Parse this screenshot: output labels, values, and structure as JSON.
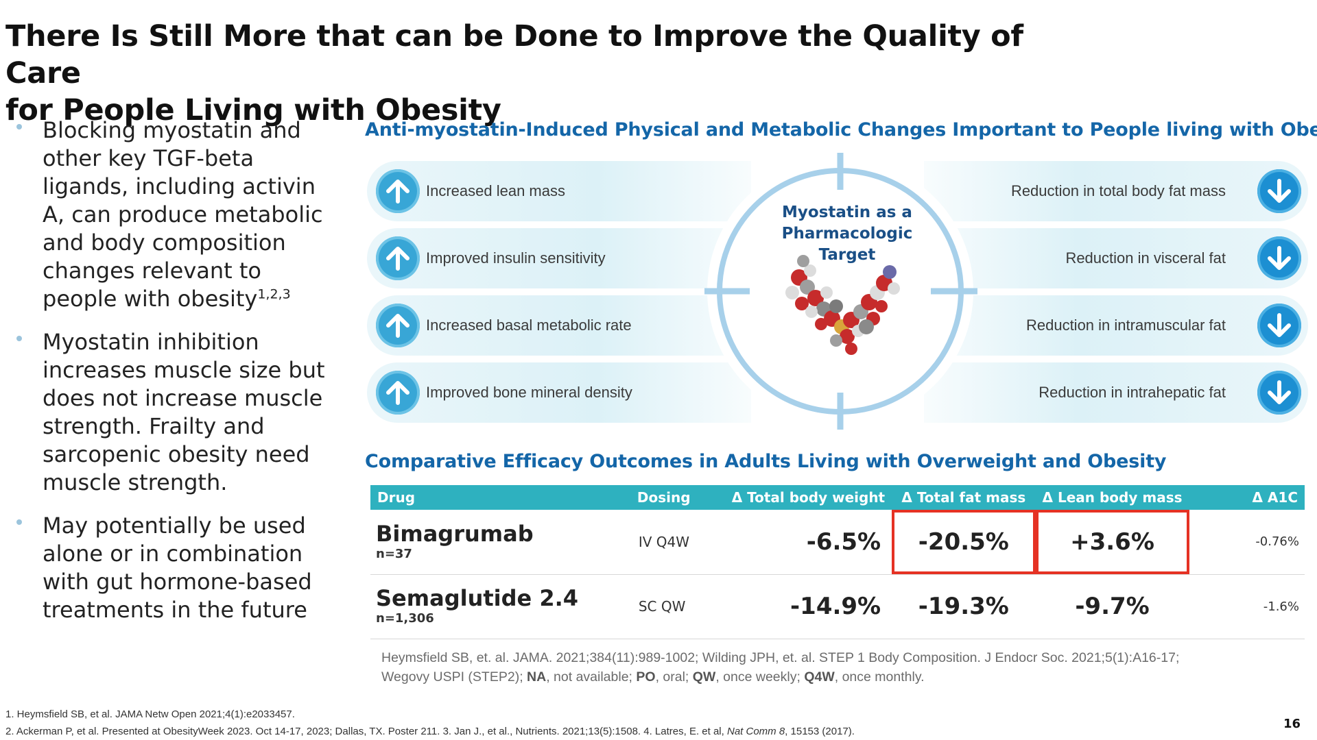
{
  "slide": {
    "title_line1": "There Is Still More that can be Done to Improve the Quality of Care",
    "title_line2": "for People Living with Obesity",
    "page_number": "16"
  },
  "bullets": [
    {
      "text": "Blocking myostatin and other key TGF-beta ligands, including activin A, can produce metabolic and body composition changes relevant to people with obesity",
      "sup": "1,2,3"
    },
    {
      "text": "Myostatin inhibition increases muscle size but does not increase muscle strength. Frailty and sarcopenic obesity need muscle strength."
    },
    {
      "text": "May potentially be used alone or in combination with gut hormone-based treatments in the future"
    }
  ],
  "diagram": {
    "section_title": "Anti-myostatin-Induced Physical and Metabolic Changes Important to People living with Obesity",
    "center_title_line1": "Myostatin as a",
    "center_title_line2": "Pharmacologic Target",
    "increases": [
      "Increased lean mass",
      "Improved insulin sensitivity",
      "Increased basal metabolic rate",
      "Improved bone mineral density"
    ],
    "reductions": [
      "Reduction in total body fat mass",
      "Reduction in visceral fat",
      "Reduction in intramuscular fat",
      "Reduction in intrahepatic fat"
    ],
    "colors": {
      "arrow_up": "#38a6d6",
      "arrow_down": "#1c8fd2",
      "row_bg": "#dcf1f7",
      "crosshair": "#a7d0ea"
    }
  },
  "table": {
    "section_title": "Comparative Efficacy Outcomes in Adults Living with Overweight and Obesity",
    "headers": {
      "drug": "Drug",
      "dosing": "Dosing",
      "weight": "Δ Total body weight",
      "fat": "Δ Total fat mass",
      "lean": "Δ Lean body mass",
      "a1c": "Δ A1C"
    },
    "rows": [
      {
        "drug": "Bimagrumab",
        "n": "n=37",
        "dosing": "IV Q4W",
        "weight": "-6.5%",
        "fat": "-20.5%",
        "lean": "+3.6%",
        "a1c": "-0.76%"
      },
      {
        "drug": "Semaglutide 2.4",
        "n": "n=1,306",
        "dosing": "SC QW",
        "weight": "-14.9%",
        "fat": "-19.3%",
        "lean": "-9.7%",
        "a1c": "-1.6%"
      }
    ],
    "colors": {
      "header_bg": "#2eb1bf",
      "highlight": "#e53224"
    }
  },
  "references": {
    "line1": "Heymsfield SB, et. al. JAMA. 2021;384(11):989-1002; Wilding JPH, et. al. STEP 1 Body Composition. J Endocr Soc. 2021;5(1):A16-17;",
    "line2_prefix": "Wegovy USPI (STEP2); ",
    "abbrevs": [
      {
        "term": "NA",
        "def": ", not available; "
      },
      {
        "term": "PO",
        "def": ", oral; "
      },
      {
        "term": "QW",
        "def": ", once weekly; "
      },
      {
        "term": "Q4W",
        "def": ", once monthly."
      }
    ]
  },
  "footnotes": {
    "f1": "1. Heymsfield SB, et al. JAMA Netw Open 2021;4(1):e2033457.",
    "f2_prefix": "2. Ackerman P, et al. Presented at ObesityWeek 2023. Oct 14-17, 2023; Dallas, TX. Poster 211. 3. Jan J., et al., Nutrients. 2021;13(5):1508. 4. Latres, E. et al, ",
    "f2_journal": "Nat Comm 8",
    "f2_suffix": ", 15153 (2017)."
  }
}
